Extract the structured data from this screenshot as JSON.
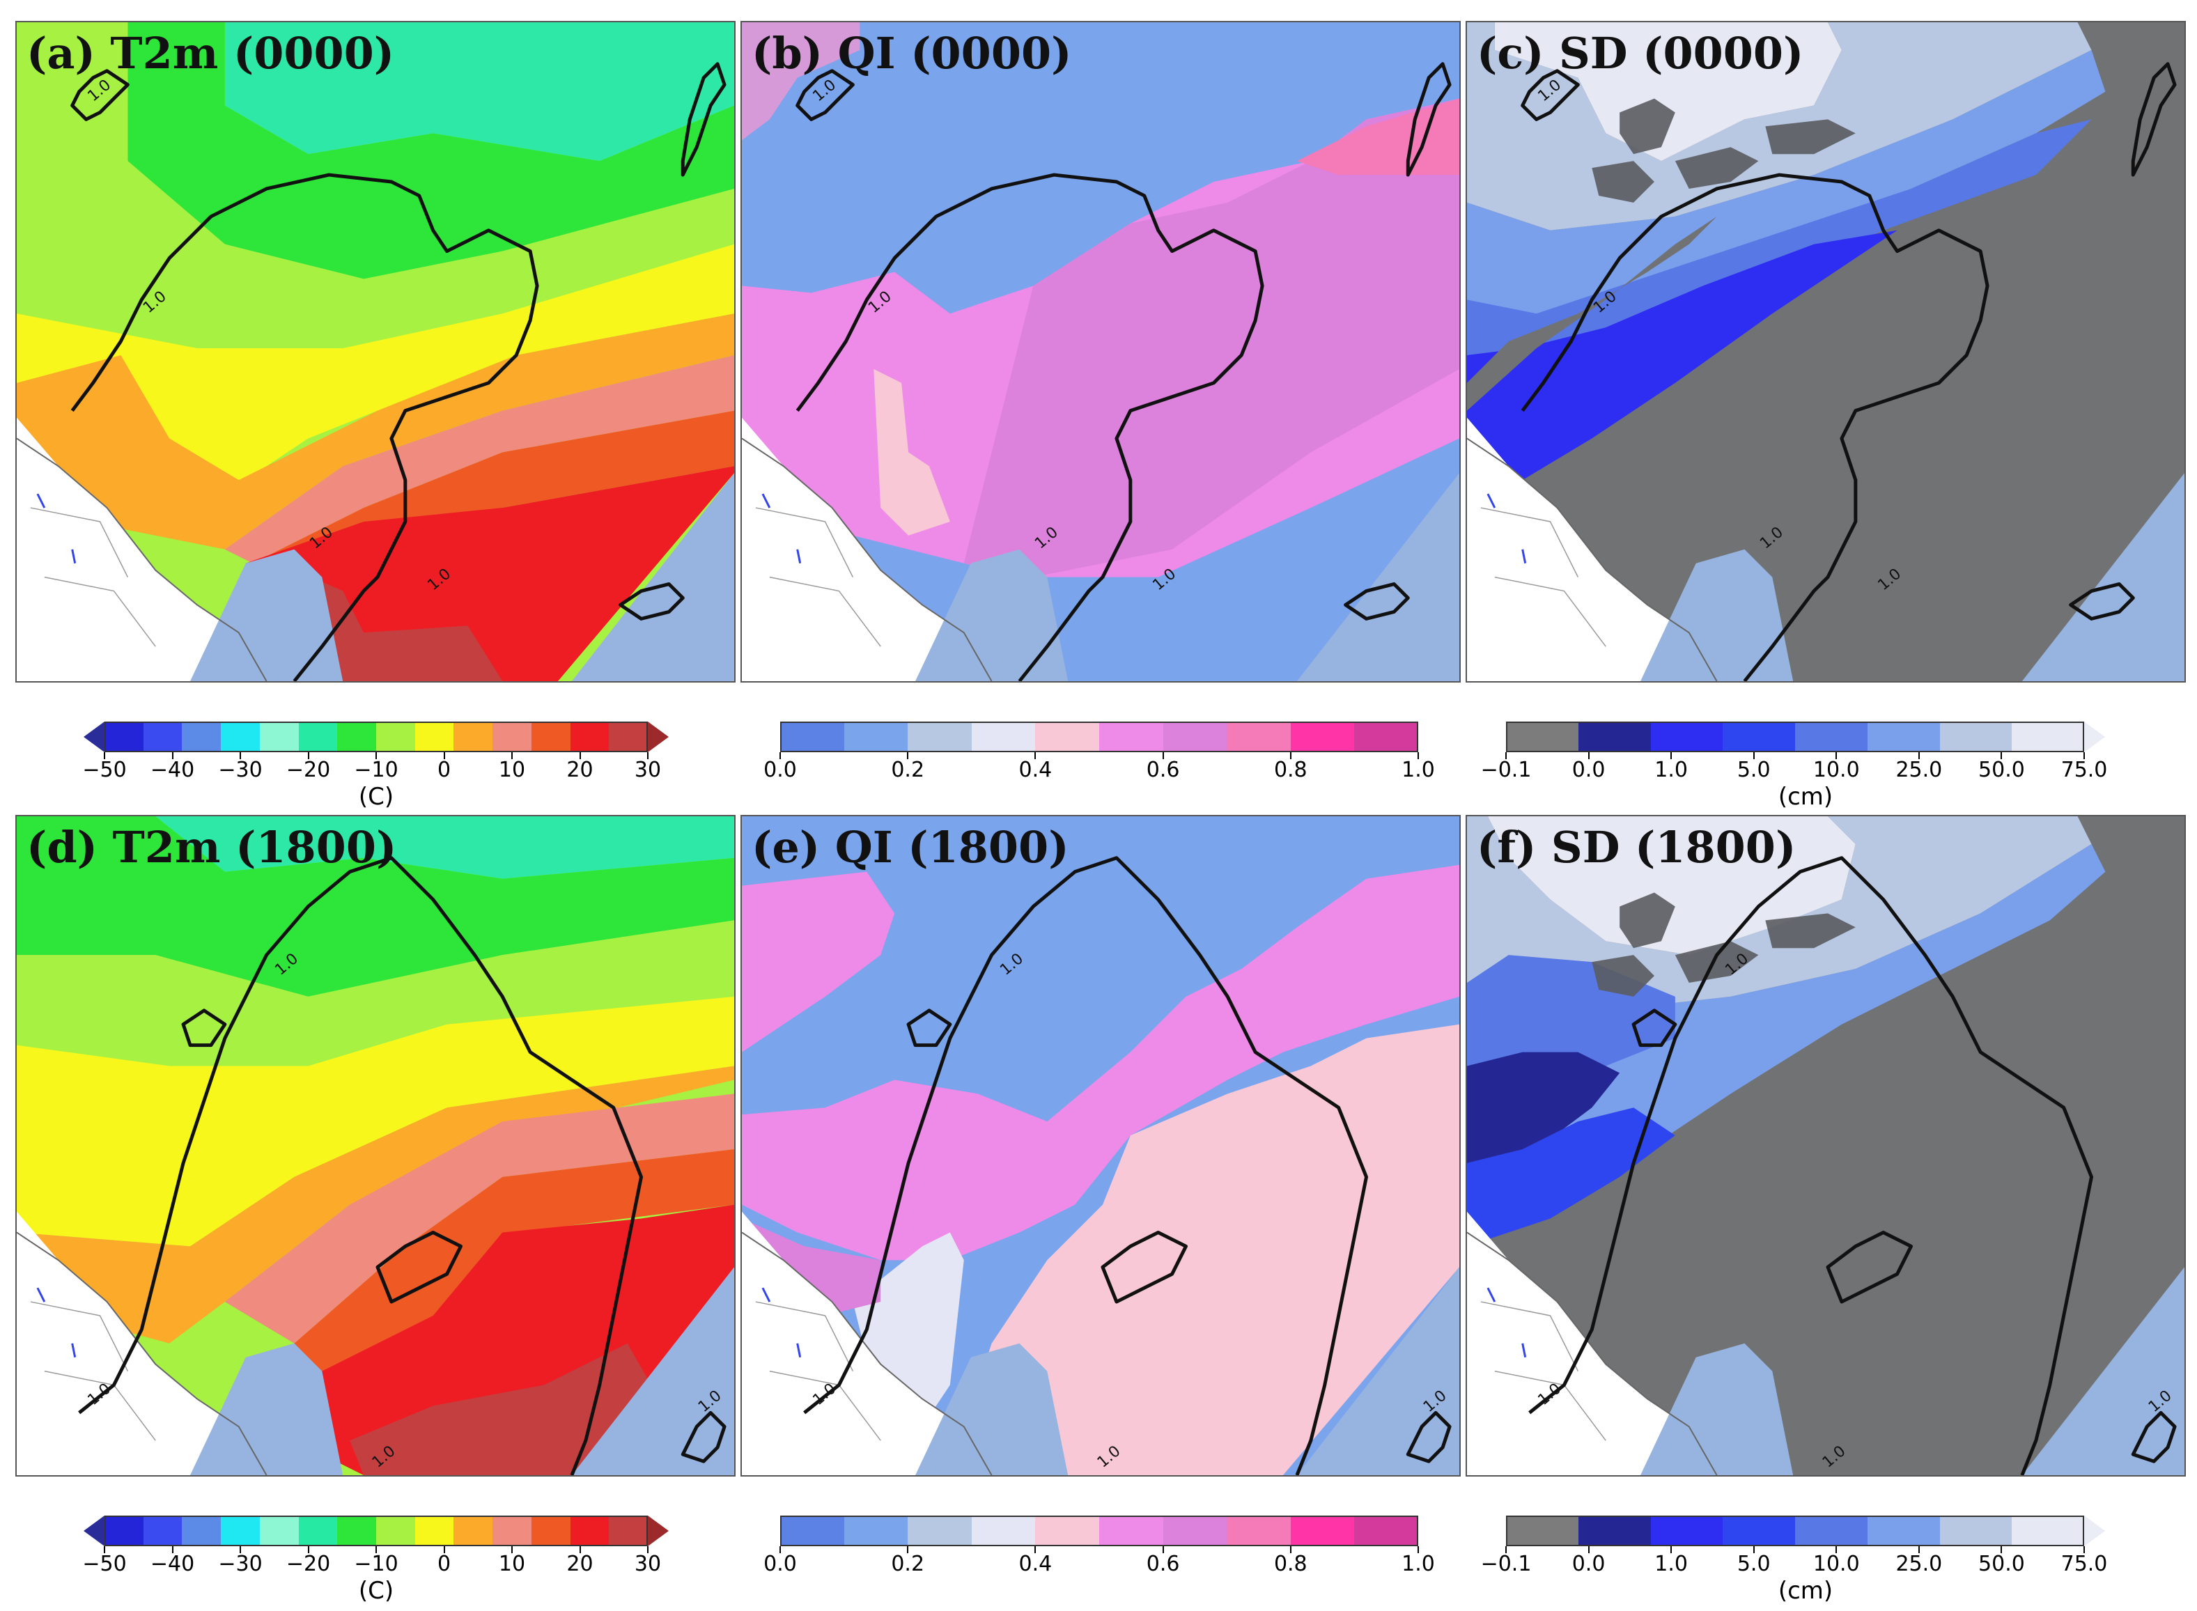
{
  "panels": [
    {
      "id": "a",
      "title": "(a) T2m (0000)",
      "kind": "t2m",
      "time": "0000",
      "contour_labels": [
        "1.0",
        "1.0",
        "1.0",
        "1.0"
      ]
    },
    {
      "id": "b",
      "title": "(b) QI (0000)",
      "kind": "qi",
      "time": "0000",
      "contour_labels": [
        "1.0",
        "1.0",
        "1.0",
        "1.0"
      ]
    },
    {
      "id": "c",
      "title": "(c) SD (0000)",
      "kind": "sd",
      "time": "0000",
      "contour_labels": [
        "1.0",
        "1.0",
        "1.0",
        "1.0"
      ]
    },
    {
      "id": "d",
      "title": "(d) T2m (1800)",
      "kind": "t2m",
      "time": "1800",
      "contour_labels": [
        "1.0",
        "1.0",
        "1.0",
        "1.0"
      ]
    },
    {
      "id": "e",
      "title": "(e) QI (1800)",
      "kind": "qi",
      "time": "1800",
      "contour_labels": [
        "1.0",
        "1.0",
        "1.0",
        "1.0"
      ]
    },
    {
      "id": "f",
      "title": "(f) SD (1800)",
      "kind": "sd",
      "time": "1800",
      "contour_labels": [
        "1.0",
        "1.0",
        "1.0",
        "1.0"
      ]
    }
  ],
  "colorbars": {
    "t2m": {
      "unit": "(C)",
      "colors": [
        "#2a2d99",
        "#2424d8",
        "#3a4cf0",
        "#5b8be6",
        "#20e8f2",
        "#8df7d3",
        "#26e9a3",
        "#2ee63a",
        "#a7f142",
        "#f7f71c",
        "#fbaa2a",
        "#f08b80",
        "#ef5a24",
        "#ee1d24",
        "#c44040",
        "#9c2a2a"
      ],
      "ticks": [
        "−50",
        "−40",
        "−30",
        "−20",
        "−10",
        "0",
        "10",
        "20",
        "30"
      ],
      "extend_min": true,
      "extend_max": true
    },
    "qi": {
      "unit": "",
      "colors": [
        "#5b82e4",
        "#7aa4ec",
        "#b7c9e2",
        "#e4e6f5",
        "#f8c8d6",
        "#ee8ae8",
        "#dc82dc",
        "#f47ab8",
        "#ff34a6",
        "#d43a9c"
      ],
      "ticks": [
        "0.0",
        "0.2",
        "0.4",
        "0.6",
        "0.8",
        "1.0"
      ],
      "extend_min": false,
      "extend_max": false
    },
    "sd": {
      "unit": "(cm)",
      "colors": [
        "#7c7c7c",
        "#242694",
        "#2e2ef2",
        "#2e46f0",
        "#5878e6",
        "#7aa0ec",
        "#b8c8e2",
        "#e6e8f4"
      ],
      "ticks": [
        "−0.1",
        "0.0",
        "1.0",
        "5.0",
        "10.0",
        "25.0",
        "50.0",
        "75.0"
      ],
      "extend_min": false,
      "extend_max": true
    }
  }
}
